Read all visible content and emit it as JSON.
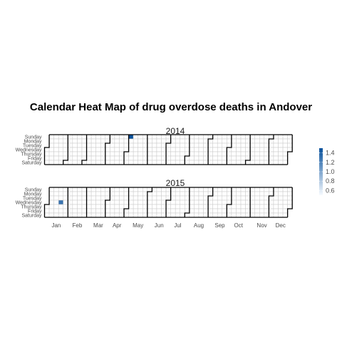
{
  "chart_data": {
    "type": "heatmap",
    "title": "Calendar Heat Map of drug overdose deaths in Andover",
    "xlabel": "",
    "ylabel": "",
    "years": [
      "2014",
      "2015"
    ],
    "weekdays": [
      "Sunday",
      "Monday",
      "Tuesday",
      "Wednesday",
      "Thursday",
      "Friday",
      "Saturday"
    ],
    "months": [
      "Jan",
      "Feb",
      "Mar",
      "Apr",
      "May",
      "Jun",
      "Jul",
      "Aug",
      "Sep",
      "Oct",
      "Nov",
      "Dec"
    ],
    "values": [
      {
        "date": "2014-05-04",
        "value": 1.5
      },
      {
        "date": "2015-01-21",
        "value": 1.3
      }
    ],
    "legend": {
      "ticks": [
        "1.4",
        "1.2",
        "1.0",
        "0.8",
        "0.6"
      ],
      "range": [
        0.5,
        1.5
      ],
      "colors": [
        "#f7fbff",
        "#08519c"
      ],
      "placement": "right"
    },
    "grid": true
  }
}
